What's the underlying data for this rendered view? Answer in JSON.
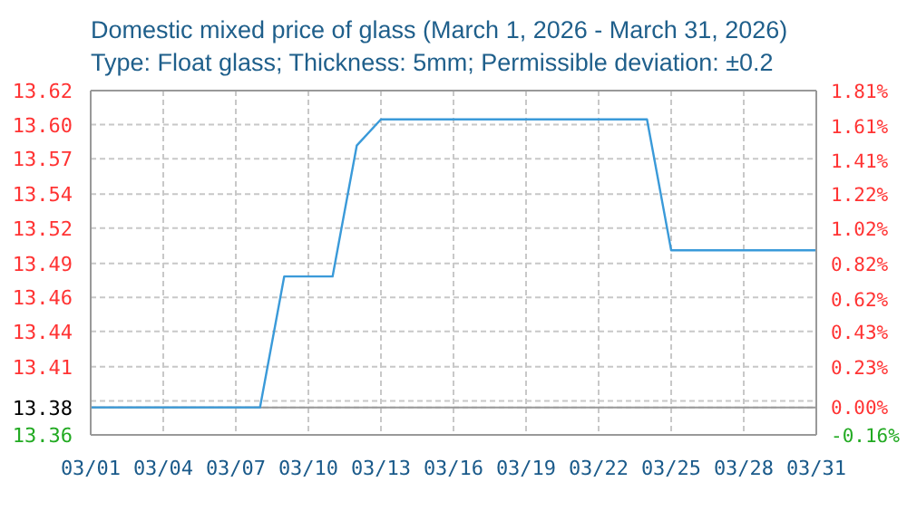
{
  "chart_data": {
    "type": "line",
    "title": "Domestic mixed price of glass (March 1, 2026 - March 31, 2026)",
    "subtitle": "Type: Float glass; Thickness: 5mm; Permissible deviation: ±0.2",
    "x": [
      "--03-01",
      "--03-02",
      "--03-03",
      "--03-04",
      "--03-05",
      "--03-06",
      "--03-07",
      "--03-08",
      "--03-09",
      "--03-10",
      "--03-11",
      "--03-12",
      "--03-13",
      "--03-14",
      "--03-15",
      "--03-16",
      "--03-17",
      "--03-18",
      "--03-19",
      "--03-20",
      "--03-21",
      "--03-22",
      "--03-23",
      "--03-24",
      "--03-25",
      "--03-26",
      "--03-27",
      "--03-28",
      "--03-29",
      "--03-30",
      "--03-31"
    ],
    "series": [
      {
        "color": "#3a9ad9",
        "values": [
          13.38,
          13.38,
          13.38,
          13.38,
          13.38,
          13.38,
          13.38,
          13.38,
          13.48,
          13.48,
          13.48,
          13.58,
          13.6,
          13.6,
          13.6,
          13.6,
          13.6,
          13.6,
          13.6,
          13.6,
          13.6,
          13.6,
          13.6,
          13.6,
          13.5,
          13.5,
          13.5,
          13.5,
          13.5,
          13.5,
          13.5
        ]
      }
    ],
    "xlim": [
      "--03-01",
      "--03-31"
    ],
    "xticks": [
      {
        "value": "--03-01",
        "label": "03/01"
      },
      {
        "value": "--03-04",
        "label": "03/04"
      },
      {
        "value": "--03-07",
        "label": "03/07"
      },
      {
        "value": "--03-10",
        "label": "03/10"
      },
      {
        "value": "--03-13",
        "label": "03/13"
      },
      {
        "value": "--03-16",
        "label": "03/16"
      },
      {
        "value": "--03-19",
        "label": "03/19"
      },
      {
        "value": "--03-22",
        "label": "03/22"
      },
      {
        "value": "--03-25",
        "label": "03/25"
      },
      {
        "value": "--03-28",
        "label": "03/28"
      },
      {
        "value": "--03-31",
        "label": "03/31"
      }
    ],
    "ylim": [
      13.359,
      13.622
    ],
    "yticks": [
      {
        "value": 13.359,
        "label": "13.36"
      },
      {
        "value": 13.385,
        "label": null
      },
      {
        "value": 13.38,
        "label": "13.38"
      },
      {
        "value": 13.411,
        "label": "13.41"
      },
      {
        "value": 13.438,
        "label": "13.44"
      },
      {
        "value": 13.464,
        "label": "13.46"
      },
      {
        "value": 13.49,
        "label": "13.49"
      },
      {
        "value": 13.517,
        "label": "13.52"
      },
      {
        "value": 13.543,
        "label": "13.54"
      },
      {
        "value": 13.57,
        "label": "13.57"
      },
      {
        "value": 13.596,
        "label": "13.60"
      },
      {
        "value": 13.622,
        "label": "13.62"
      }
    ],
    "y2lim": [
      -0.16,
      1.81
    ],
    "y2ticks": [
      {
        "value": -0.16,
        "label": "-0.16%"
      },
      {
        "value": 0,
        "label": "0.00%"
      },
      {
        "value": 0.23,
        "label": "0.23%"
      },
      {
        "value": 0.43,
        "label": "0.43%"
      },
      {
        "value": 0.62,
        "label": "0.62%"
      },
      {
        "value": 0.82,
        "label": "0.82%"
      },
      {
        "value": 1.02,
        "label": "1.02%"
      },
      {
        "value": 1.22,
        "label": "1.22%"
      },
      {
        "value": 1.41,
        "label": "1.41%"
      },
      {
        "value": 1.61,
        "label": "1.61%"
      },
      {
        "value": 1.81,
        "label": "1.81%"
      }
    ],
    "ref_lines": [
      {
        "axis": "y",
        "value": 13.38,
        "color": "#999999"
      }
    ],
    "grid": true
  }
}
